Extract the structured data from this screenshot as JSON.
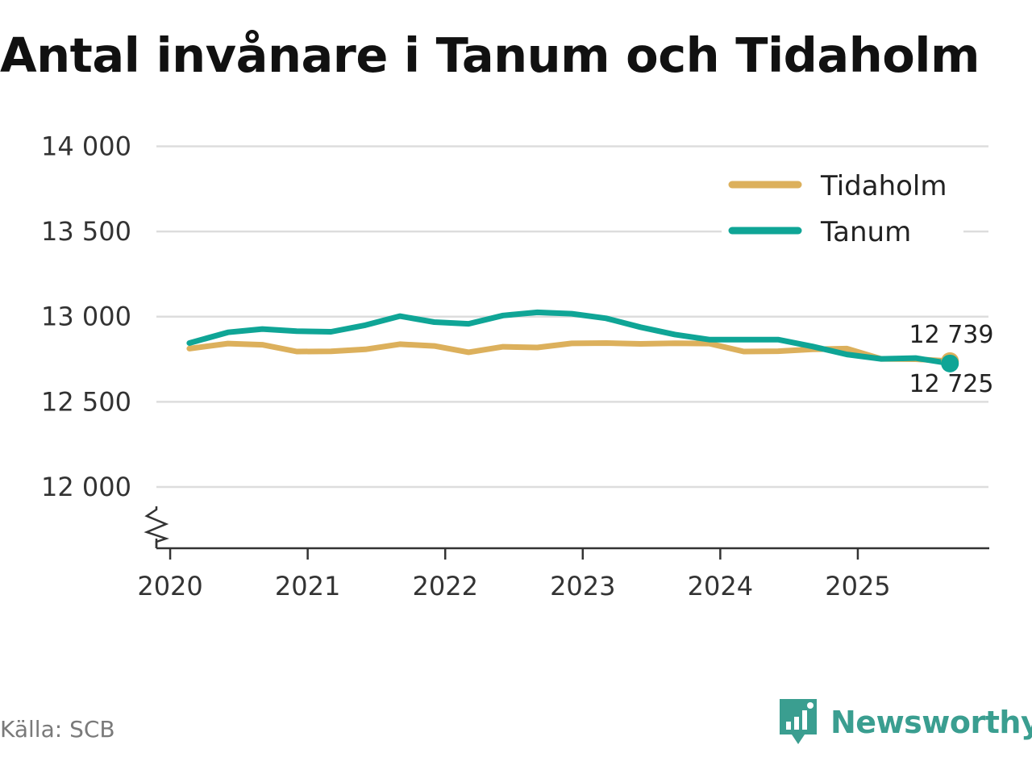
{
  "header": {
    "title": "Antal invånare i Tanum och Tidaholm"
  },
  "footer": {
    "source": "Källa: SCB",
    "brand": "Newsworthy"
  },
  "colors": {
    "tidaholm": "#dcb05c",
    "tanum": "#0fa596",
    "grid": "#dddddd",
    "axis": "#333333",
    "brand": "#3a9e90"
  },
  "chart_data": {
    "type": "line",
    "title": "Antal invånare i Tanum och Tidaholm",
    "xlabel": "",
    "ylabel": "",
    "ylim": [
      11640,
      14000
    ],
    "yticks": [
      12000,
      12500,
      13000,
      13500,
      14000
    ],
    "ytick_labels": [
      "12 000",
      "12 500",
      "13 000",
      "13 500",
      "14 000"
    ],
    "xlim": [
      2019.9,
      2025.95
    ],
    "xticks": [
      2020,
      2021,
      2022,
      2023,
      2024,
      2025
    ],
    "xtick_labels": [
      "2020",
      "2021",
      "2022",
      "2023",
      "2024",
      "2025"
    ],
    "broken_axis": true,
    "grid": true,
    "legend_position": "top-right",
    "x": [
      2020.14,
      2020.42,
      2020.67,
      2020.92,
      2021.17,
      2021.42,
      2021.67,
      2021.92,
      2022.17,
      2022.42,
      2022.67,
      2022.92,
      2023.17,
      2023.42,
      2023.67,
      2023.92,
      2024.17,
      2024.42,
      2024.67,
      2024.92,
      2025.17,
      2025.42,
      2025.67
    ],
    "series": [
      {
        "name": "Tidaholm",
        "color": "#dcb05c",
        "values": [
          12812,
          12842,
          12835,
          12795,
          12796,
          12808,
          12838,
          12828,
          12791,
          12823,
          12819,
          12843,
          12845,
          12840,
          12844,
          12842,
          12795,
          12797,
          12808,
          12812,
          12752,
          12750,
          12739
        ],
        "end_label": "12 739"
      },
      {
        "name": "Tanum",
        "color": "#0fa596",
        "values": [
          12845,
          12908,
          12927,
          12915,
          12911,
          12950,
          13003,
          12968,
          12958,
          13007,
          13025,
          13017,
          12990,
          12938,
          12895,
          12865,
          12865,
          12865,
          12825,
          12778,
          12752,
          12757,
          12725
        ],
        "end_label": "12 725"
      }
    ]
  }
}
